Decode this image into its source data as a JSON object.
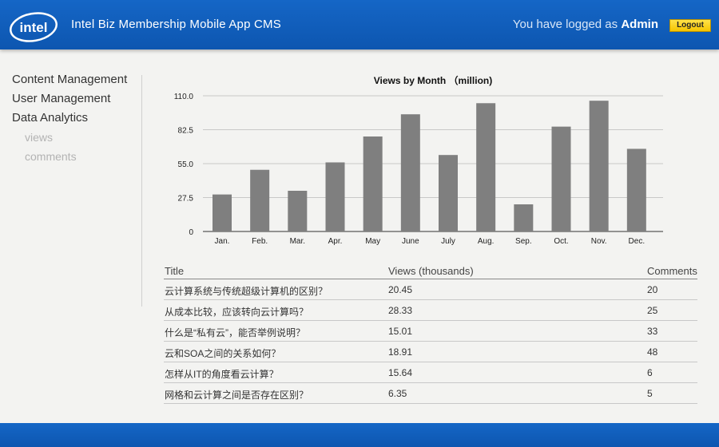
{
  "header": {
    "logo_text": "intel",
    "app_title": "Intel Biz Membership Mobile App CMS",
    "login_prefix": "You have logged as",
    "user_name": "Admin",
    "logout_label": "Logout"
  },
  "sidebar": {
    "items": [
      {
        "label": "Content Management"
      },
      {
        "label": "User Management"
      },
      {
        "label": "Data Analytics"
      }
    ],
    "sub_items": [
      {
        "label": "views"
      },
      {
        "label": "comments"
      }
    ]
  },
  "chart_data": {
    "type": "bar",
    "title": "Views by Month （million)",
    "categories": [
      "Jan.",
      "Feb.",
      "Mar.",
      "Apr.",
      "May",
      "June",
      "July",
      "Aug.",
      "Sep.",
      "Oct.",
      "Nov.",
      "Dec."
    ],
    "values": [
      30,
      50,
      33,
      56,
      77,
      95,
      62,
      104,
      22,
      85,
      106,
      67
    ],
    "yticks": [
      "0",
      "27.5",
      "55.0",
      "82.5",
      "110.0"
    ],
    "ylim": [
      0,
      110
    ],
    "grid": true,
    "bar_color": "#7f7f7f"
  },
  "table": {
    "headers": {
      "title": "Title",
      "views": "Views (thousands)",
      "comments": "Comments"
    },
    "rows": [
      {
        "title": "云计算系统与传统超级计算机的区别？",
        "views": "20.45",
        "comments": "20"
      },
      {
        "title": "从成本比较，应该转向云计算吗？",
        "views": "28.33",
        "comments": "25"
      },
      {
        "title": "什么是“私有云”，能否举例说明？",
        "views": "15.01",
        "comments": "33"
      },
      {
        "title": "云和SOA之间的关系如何？",
        "views": "18.91",
        "comments": "48"
      },
      {
        "title": "怎样从IT的角度看云计算？",
        "views": "15.64",
        "comments": "6"
      },
      {
        "title": "网格和云计算之间是否存在区别？",
        "views": "6.35",
        "comments": "5"
      }
    ]
  },
  "colors": {
    "header_blue": "#1566c6",
    "logout_yellow": "#f5c400"
  }
}
